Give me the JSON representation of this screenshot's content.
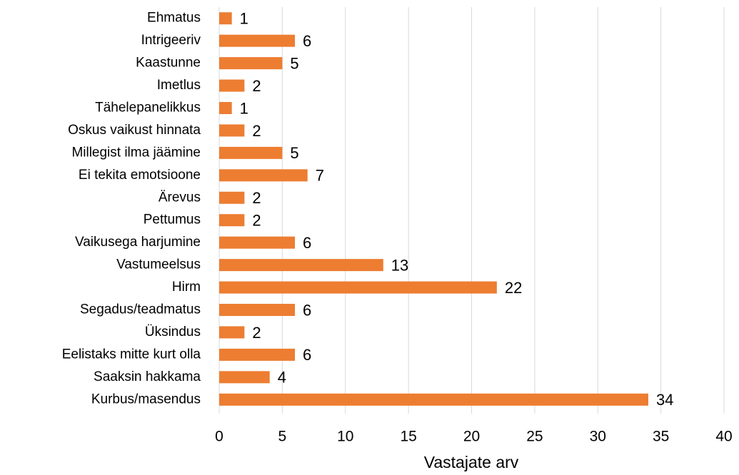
{
  "chart_data": {
    "type": "bar",
    "orientation": "horizontal",
    "x_label": "Vastajate arv",
    "categories": [
      "Ehmatus",
      "Intrigeeriv",
      "Kaastunne",
      "Imetlus",
      "Tähelepanelikkus",
      "Oskus vaikust hinnata",
      "Millegist ilma jäämine",
      "Ei tekita emotsioone",
      "Ärevus",
      "Pettumus",
      "Vaikusega harjumine",
      "Vastumeelsus",
      "Hirm",
      "Segadus/teadmatus",
      "Üksindus",
      "Eelistaks mitte kurt olla",
      "Saaksin hakkama",
      "Kurbus/masendus"
    ],
    "values": [
      1,
      6,
      5,
      2,
      1,
      2,
      5,
      7,
      2,
      2,
      6,
      13,
      22,
      6,
      2,
      6,
      4,
      34
    ],
    "color": "#ed7d31",
    "xlim": [
      0,
      40
    ],
    "xticks": [
      0,
      5,
      10,
      15,
      20,
      25,
      30,
      35,
      40
    ],
    "grid": true
  }
}
